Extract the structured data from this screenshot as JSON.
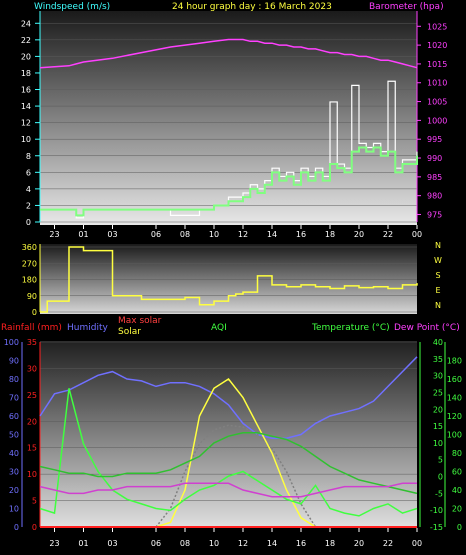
{
  "colors": {
    "background": "#000000",
    "wind_avg": "#80ff80",
    "wind_gust": "#ffffff",
    "barometer": "#ff40ff",
    "direction": "#ffff40",
    "temperature": "#40ff40",
    "dew_point": "#d040d0",
    "humidity": "#7070ff",
    "solar": "#ffff40",
    "max_solar": "#ffffff",
    "rainfall": "#ff2020",
    "aqi": "#40ff40",
    "axis_white": "#ffffff",
    "cyan": "#40ffff"
  },
  "x_time_labels": [
    "23",
    "01",
    "03",
    "06",
    "08",
    "10",
    "12",
    "14",
    "16",
    "18",
    "20",
    "22",
    "00"
  ],
  "chart_data": [
    {
      "type": "line",
      "title": "24 hour graph day : 16 March 2023",
      "left_label": "Windspeed (m/s)",
      "right_label": "Barometer (hpa)",
      "y_ticks": [
        "0",
        "2",
        "4",
        "6",
        "8",
        "10",
        "12",
        "14",
        "16",
        "18",
        "20",
        "22",
        "24"
      ],
      "ylim": [
        0,
        25
      ],
      "y2_ticks": [
        "975",
        "980",
        "985",
        "990",
        "995",
        "1000",
        "1005",
        "1010",
        "1015",
        "1020",
        "1025"
      ],
      "y2lim": [
        973,
        1028
      ],
      "x": [
        22.0,
        0.0,
        0.5,
        1.0,
        3.0,
        5.0,
        7.0,
        9.0,
        10.0,
        11.0,
        12.0,
        12.5,
        13.0,
        13.5,
        14.0,
        14.5,
        15.0,
        15.5,
        16.0,
        16.5,
        17.0,
        17.5,
        18.0,
        18.5,
        19.0,
        19.5,
        20.0,
        20.5,
        21.0,
        21.5,
        22.0,
        22.5,
        23.0,
        23.5,
        24.0
      ],
      "series": [
        {
          "name": "wind_avg",
          "values": [
            1.5,
            1.5,
            0.8,
            1.5,
            1.5,
            1.5,
            1.5,
            1.5,
            2.0,
            2.5,
            3.0,
            4.0,
            3.5,
            4.5,
            6.0,
            5.0,
            5.5,
            4.5,
            6.0,
            5.0,
            6.0,
            5.0,
            7.0,
            6.5,
            6.0,
            8.5,
            9.0,
            8.5,
            9.0,
            8.0,
            8.5,
            6.0,
            7.0,
            7.0,
            8.0
          ]
        },
        {
          "name": "wind_gust",
          "values": [
            1.5,
            1.5,
            0.5,
            1.5,
            1.5,
            1.5,
            0.8,
            1.5,
            2.0,
            3.0,
            3.5,
            4.5,
            4.0,
            5.0,
            6.5,
            5.5,
            6.0,
            5.0,
            6.5,
            5.5,
            6.5,
            5.5,
            14.5,
            7.0,
            6.5,
            16.5,
            9.5,
            9.0,
            9.5,
            8.5,
            17.0,
            6.5,
            7.5,
            7.5,
            8.5
          ]
        },
        {
          "name": "barometer",
          "values": [
            1014,
            1014.5,
            1015,
            1015.5,
            1016.5,
            1018,
            1019.5,
            1020.5,
            1021,
            1021.5,
            1021.5,
            1021,
            1021,
            1020.5,
            1020.5,
            1020,
            1020,
            1019.5,
            1019.5,
            1019,
            1019,
            1018.5,
            1018,
            1018,
            1017.5,
            1017.5,
            1017,
            1017,
            1016.5,
            1016,
            1016,
            1015.5,
            1015,
            1014.5,
            1014
          ]
        }
      ]
    },
    {
      "type": "line",
      "y_ticks": [
        "0",
        "90",
        "180",
        "270",
        "360"
      ],
      "ylim": [
        0,
        360
      ],
      "compass": [
        "N",
        "W",
        "S",
        "E",
        "N"
      ],
      "x": [
        22.0,
        22.5,
        23.0,
        0.0,
        0.5,
        1.0,
        2.0,
        3.0,
        5.0,
        7.0,
        8.0,
        9.0,
        10.0,
        11.0,
        11.5,
        12.0,
        13.0,
        14.0,
        15.0,
        16.0,
        17.0,
        18.0,
        19.0,
        20.0,
        21.0,
        22.0,
        23.0,
        24.0
      ],
      "series": [
        {
          "name": "direction",
          "values": [
            0,
            60,
            60,
            360,
            360,
            340,
            340,
            90,
            70,
            70,
            80,
            40,
            60,
            90,
            100,
            110,
            200,
            150,
            140,
            150,
            140,
            130,
            145,
            135,
            140,
            130,
            150,
            160
          ]
        }
      ]
    },
    {
      "type": "line",
      "legend": {
        "rainfall": "Rainfall (mm)",
        "humidity": "Humidity",
        "max_solar": "Max solar",
        "solar": "Solar",
        "aqi": "AQI",
        "temperature": "Temperature (°C)",
        "dew_point": "Dew Point (°C)"
      },
      "rain_ticks": [
        "0",
        "5",
        "10",
        "15",
        "20",
        "25",
        "30",
        "35"
      ],
      "rain_lim": [
        0,
        35
      ],
      "humidity_ticks": [
        "0",
        "10",
        "20",
        "30",
        "40",
        "50",
        "60",
        "70",
        "80",
        "90",
        "100"
      ],
      "humidity_lim": [
        0,
        100
      ],
      "temp_ticks": [
        "-15",
        "-10",
        "-5",
        "0",
        "5",
        "10",
        "15",
        "20",
        "25",
        "30",
        "35",
        "40"
      ],
      "temp_lim": [
        -15,
        40
      ],
      "aqi_ticks": [
        "0",
        "20",
        "40",
        "60",
        "80",
        "100",
        "120",
        "140",
        "160",
        "180"
      ],
      "aqi_lim": [
        0,
        200
      ],
      "x": [
        22.0,
        23.0,
        0.0,
        1.0,
        2.0,
        3.0,
        4.0,
        5.0,
        6.0,
        7.0,
        8.0,
        9.0,
        10.0,
        11.0,
        12.0,
        13.0,
        14.0,
        15.0,
        16.0,
        17.0,
        18.0,
        19.0,
        20.0,
        21.0,
        22.0,
        23.0,
        24.0
      ],
      "series": [
        {
          "name": "humidity",
          "values": [
            60,
            72,
            74,
            78,
            82,
            84,
            80,
            79,
            76,
            78,
            78,
            76,
            72,
            66,
            56,
            50,
            48,
            48,
            50,
            56,
            60,
            62,
            64,
            68,
            76,
            84,
            92
          ]
        },
        {
          "name": "temperature",
          "values": [
            3,
            2,
            1,
            1,
            0,
            0,
            1,
            1,
            1,
            2,
            4,
            6,
            10,
            12,
            13,
            13,
            12,
            11,
            9,
            6,
            3,
            1,
            -1,
            -2,
            -3,
            -4,
            -5
          ]
        },
        {
          "name": "dew_point",
          "values": [
            -3,
            -4,
            -5,
            -5,
            -4,
            -4,
            -3,
            -3,
            -3,
            -3,
            -2,
            -2,
            -2,
            -2,
            -4,
            -5,
            -6,
            -6,
            -6,
            -5,
            -4,
            -3,
            -3,
            -3,
            -3,
            -2,
            -2
          ]
        },
        {
          "name": "solar",
          "values": [
            0,
            0,
            0,
            0,
            0,
            0,
            0,
            0,
            0,
            5,
            40,
            120,
            150,
            160,
            140,
            110,
            80,
            40,
            10,
            0,
            0,
            0,
            0,
            0,
            0,
            0,
            0
          ]
        },
        {
          "name": "max_solar",
          "values": [
            0,
            0,
            0,
            0,
            0,
            0,
            0,
            0,
            0,
            20,
            60,
            90,
            105,
            110,
            108,
            100,
            85,
            60,
            25,
            0,
            0,
            0,
            0,
            0,
            0,
            0,
            0
          ]
        },
        {
          "name": "aqi",
          "values": [
            20,
            15,
            150,
            90,
            60,
            40,
            30,
            25,
            20,
            18,
            30,
            40,
            45,
            55,
            60,
            50,
            40,
            30,
            25,
            45,
            20,
            15,
            12,
            20,
            25,
            15,
            20
          ]
        },
        {
          "name": "rainfall",
          "values": [
            0,
            0,
            0,
            0,
            0,
            0,
            0,
            0,
            0,
            0,
            0,
            0,
            0,
            0,
            0,
            0,
            0,
            0,
            0,
            0,
            0,
            0,
            0,
            0,
            0,
            0,
            0
          ]
        }
      ]
    }
  ]
}
